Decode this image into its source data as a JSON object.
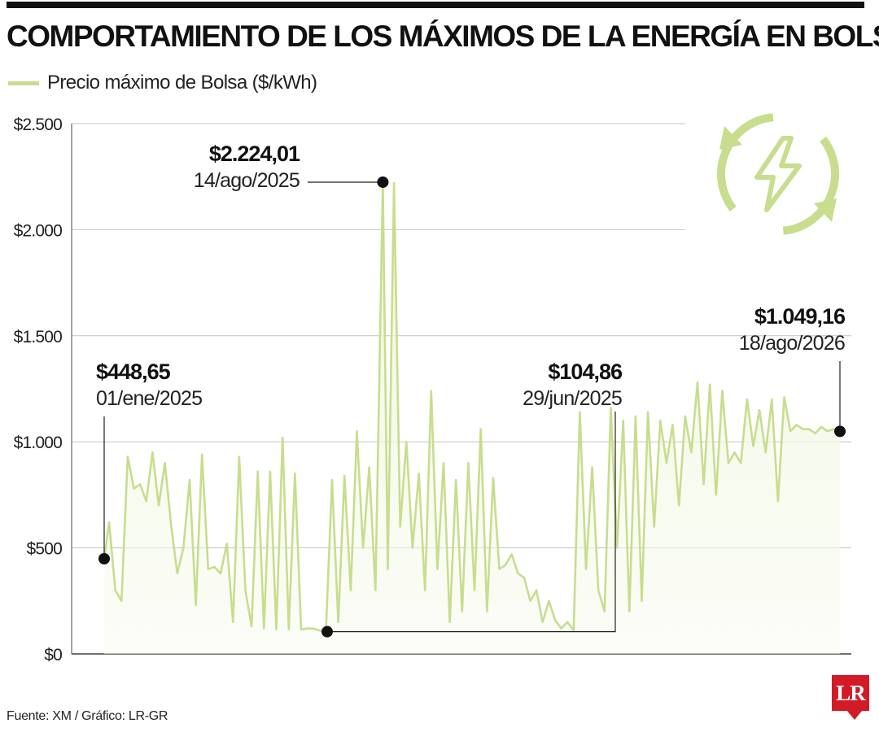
{
  "header": {
    "title": "COMPORTAMIENTO DE LOS MÁXIMOS DE LA ENERGÍA EN BOLSA"
  },
  "legend": {
    "label": "Precio máximo de Bolsa ($/kWh)",
    "color": "#c8dd8e"
  },
  "footer": {
    "source": "Fuente: XM / Gráfico: LR-GR",
    "logo": "LR",
    "logo_color": "#d31a27"
  },
  "icon": {
    "name": "renewable-energy-icon",
    "color": "#c8dd8e"
  },
  "chart_data": {
    "type": "line",
    "title": "COMPORTAMIENTO DE LOS MÁXIMOS DE LA ENERGÍA EN BOLSA",
    "xlabel": "",
    "ylabel": "",
    "xlim": [
      "2025-01-01",
      "2026-08-18"
    ],
    "ylim": [
      0,
      2500
    ],
    "yticks": [
      0,
      500,
      1000,
      1500,
      2000,
      2500
    ],
    "ytick_labels": [
      "$0",
      "$500",
      "$1.000",
      "$1.500",
      "$2.000",
      "$2.500"
    ],
    "grid": true,
    "legend_position": "top-left",
    "line_color": "#c8dd8e",
    "series": [
      {
        "name": "Precio máximo de Bolsa ($/kWh)",
        "points": [
          [
            "2025-01-01",
            448.65
          ],
          [
            "2025-01-05",
            620
          ],
          [
            "2025-01-10",
            300
          ],
          [
            "2025-01-15",
            250
          ],
          [
            "2025-01-20",
            930
          ],
          [
            "2025-01-25",
            780
          ],
          [
            "2025-01-30",
            800
          ],
          [
            "2025-02-04",
            720
          ],
          [
            "2025-02-09",
            950
          ],
          [
            "2025-02-14",
            700
          ],
          [
            "2025-02-19",
            900
          ],
          [
            "2025-02-24",
            610
          ],
          [
            "2025-03-01",
            380
          ],
          [
            "2025-03-06",
            500
          ],
          [
            "2025-03-11",
            820
          ],
          [
            "2025-03-16",
            230
          ],
          [
            "2025-03-21",
            940
          ],
          [
            "2025-03-26",
            400
          ],
          [
            "2025-03-31",
            410
          ],
          [
            "2025-04-05",
            380
          ],
          [
            "2025-04-10",
            520
          ],
          [
            "2025-04-15",
            150
          ],
          [
            "2025-04-20",
            930
          ],
          [
            "2025-04-25",
            300
          ],
          [
            "2025-04-30",
            130
          ],
          [
            "2025-05-05",
            860
          ],
          [
            "2025-05-10",
            120
          ],
          [
            "2025-05-15",
            860
          ],
          [
            "2025-05-20",
            115
          ],
          [
            "2025-05-25",
            1020
          ],
          [
            "2025-05-30",
            115
          ],
          [
            "2025-06-04",
            850
          ],
          [
            "2025-06-09",
            115
          ],
          [
            "2025-06-14",
            120
          ],
          [
            "2025-06-19",
            120
          ],
          [
            "2025-06-24",
            110
          ],
          [
            "2025-06-29",
            104.86
          ],
          [
            "2025-07-04",
            820
          ],
          [
            "2025-07-09",
            150
          ],
          [
            "2025-07-14",
            840
          ],
          [
            "2025-07-19",
            300
          ],
          [
            "2025-07-24",
            1050
          ],
          [
            "2025-07-29",
            500
          ],
          [
            "2025-08-03",
            880
          ],
          [
            "2025-08-08",
            300
          ],
          [
            "2025-08-14",
            2224.01
          ],
          [
            "2025-08-18",
            400
          ],
          [
            "2025-08-23",
            2220
          ],
          [
            "2025-08-28",
            600
          ],
          [
            "2025-09-02",
            1000
          ],
          [
            "2025-09-07",
            500
          ],
          [
            "2025-09-12",
            850
          ],
          [
            "2025-09-17",
            300
          ],
          [
            "2025-09-22",
            1240
          ],
          [
            "2025-09-27",
            400
          ],
          [
            "2025-10-02",
            900
          ],
          [
            "2025-10-07",
            150
          ],
          [
            "2025-10-12",
            820
          ],
          [
            "2025-10-17",
            200
          ],
          [
            "2025-10-22",
            900
          ],
          [
            "2025-10-27",
            300
          ],
          [
            "2025-11-01",
            1060
          ],
          [
            "2025-11-06",
            200
          ],
          [
            "2025-11-11",
            830
          ],
          [
            "2025-11-16",
            400
          ],
          [
            "2025-11-21",
            420
          ],
          [
            "2025-11-26",
            470
          ],
          [
            "2025-12-01",
            380
          ],
          [
            "2025-12-06",
            360
          ],
          [
            "2025-12-11",
            250
          ],
          [
            "2025-12-16",
            300
          ],
          [
            "2025-12-21",
            150
          ],
          [
            "2025-12-26",
            250
          ],
          [
            "2025-12-31",
            160
          ],
          [
            "2026-01-05",
            120
          ],
          [
            "2026-01-10",
            150
          ],
          [
            "2026-01-15",
            110
          ],
          [
            "2026-01-20",
            1140
          ],
          [
            "2026-01-25",
            400
          ],
          [
            "2026-01-30",
            880
          ],
          [
            "2026-02-04",
            300
          ],
          [
            "2026-02-09",
            200
          ],
          [
            "2026-02-14",
            1160
          ],
          [
            "2026-02-19",
            500
          ],
          [
            "2026-02-24",
            1100
          ],
          [
            "2026-03-01",
            200
          ],
          [
            "2026-03-06",
            1120
          ],
          [
            "2026-03-11",
            250
          ],
          [
            "2026-03-16",
            1140
          ],
          [
            "2026-03-21",
            600
          ],
          [
            "2026-03-26",
            1100
          ],
          [
            "2026-03-31",
            900
          ],
          [
            "2026-04-05",
            1080
          ],
          [
            "2026-04-10",
            700
          ],
          [
            "2026-04-15",
            1120
          ],
          [
            "2026-04-20",
            950
          ],
          [
            "2026-04-25",
            1280
          ],
          [
            "2026-04-30",
            800
          ],
          [
            "2026-05-05",
            1270
          ],
          [
            "2026-05-10",
            750
          ],
          [
            "2026-05-15",
            1240
          ],
          [
            "2026-05-20",
            900
          ],
          [
            "2026-05-25",
            950
          ],
          [
            "2026-05-30",
            900
          ],
          [
            "2026-06-04",
            1200
          ],
          [
            "2026-06-09",
            980
          ],
          [
            "2026-06-14",
            1150
          ],
          [
            "2026-06-19",
            950
          ],
          [
            "2026-06-24",
            1200
          ],
          [
            "2026-06-29",
            720
          ],
          [
            "2026-07-04",
            1210
          ],
          [
            "2026-07-09",
            1050
          ],
          [
            "2026-07-14",
            1080
          ],
          [
            "2026-07-19",
            1060
          ],
          [
            "2026-07-24",
            1060
          ],
          [
            "2026-07-29",
            1040
          ],
          [
            "2026-08-03",
            1070
          ],
          [
            "2026-08-08",
            1050
          ],
          [
            "2026-08-13",
            1060
          ],
          [
            "2026-08-18",
            1049.16
          ]
        ]
      }
    ],
    "annotations": [
      {
        "value_label": "$448,65",
        "date_label": "01/ene/2025",
        "x": "2025-01-01",
        "y": 448.65
      },
      {
        "value_label": "$2.224,01",
        "date_label": "14/ago/2025",
        "x": "2025-08-14",
        "y": 2224.01
      },
      {
        "value_label": "$104,86",
        "date_label": "29/jun/2025",
        "x": "2025-06-29",
        "y": 104.86
      },
      {
        "value_label": "$1.049,16",
        "date_label": "18/ago/2026",
        "x": "2026-08-18",
        "y": 1049.16
      }
    ]
  }
}
